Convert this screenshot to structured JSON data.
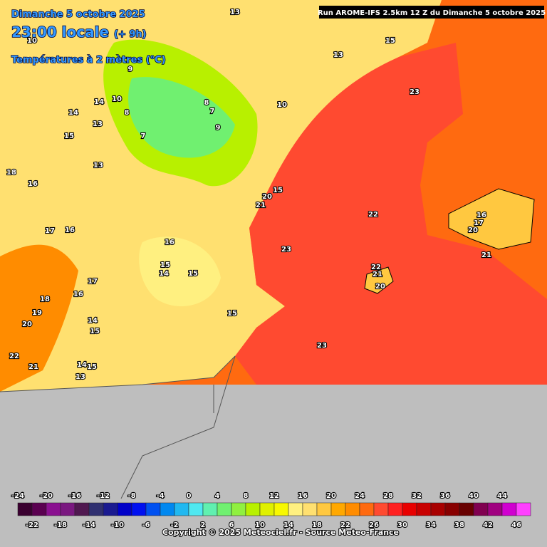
{
  "header": {
    "date": "Dimanche 5 octobre 2025",
    "time": "23:00 locale",
    "offset": "(+ 9h)",
    "variable": "Températures à 2 mètres (°C)"
  },
  "run": "Run AROME-IFS 2.5km 12 Z du Dimanche 5 octobre 2025",
  "labels": [
    13,
    15,
    13,
    9,
    10,
    14,
    14,
    10,
    8,
    7,
    8,
    7,
    9,
    15,
    13,
    10,
    18,
    16,
    13,
    15,
    20,
    21,
    17,
    16,
    23,
    22,
    16,
    17,
    20,
    15,
    14,
    15,
    23,
    22,
    21,
    20,
    21,
    18,
    16,
    17,
    19,
    20,
    15,
    14,
    15,
    22,
    21,
    14,
    15,
    13,
    23,
    16
  ],
  "colorbar": {
    "top_ticks": [
      -24,
      -20,
      -16,
      -12,
      -8,
      -4,
      0,
      4,
      8,
      12,
      16,
      20,
      24,
      28,
      32,
      36,
      40,
      44
    ],
    "bottom_ticks": [
      -22,
      -18,
      -14,
      -10,
      -6,
      -2,
      2,
      6,
      10,
      14,
      18,
      22,
      26,
      30,
      34,
      38,
      42,
      46
    ],
    "colors": [
      "#3a0030",
      "#5a0050",
      "#8a1090",
      "#7a1880",
      "#501850",
      "#303070",
      "#1a1a90",
      "#0000c8",
      "#0010f0",
      "#0050f0",
      "#0088f0",
      "#20b8f0",
      "#50e8f0",
      "#60f0b0",
      "#70f070",
      "#90f040",
      "#b8f000",
      "#e0f000",
      "#f8f800",
      "#fff080",
      "#ffe070",
      "#ffc840",
      "#ffa800",
      "#ff8c00",
      "#ff6a10",
      "#ff4a30",
      "#ff2020",
      "#e80000",
      "#c80000",
      "#a80000",
      "#880000",
      "#680000",
      "#800050",
      "#a00080",
      "#d000d0",
      "#ff40ff"
    ]
  },
  "copyright": "Copyright © 2025 Meteociel.fr - Source Meteo-France"
}
